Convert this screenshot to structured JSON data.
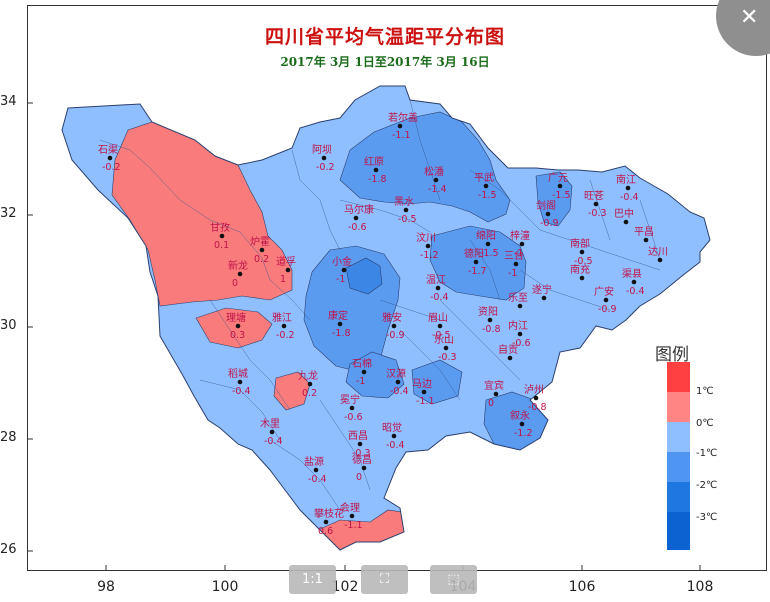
{
  "map": {
    "title": "四川省平均气温距平分布图",
    "subtitle": "2017年 3月 1日至2017年 3月 16日",
    "y_ticks": [
      "34",
      "32",
      "30",
      "28",
      "26"
    ],
    "x_ticks": [
      "98",
      "100",
      "102",
      "104",
      "106",
      "108"
    ],
    "legend": {
      "title": "图例",
      "items": [
        {
          "label": "1℃",
          "color": "#ff4040"
        },
        {
          "label": "0℃",
          "color": "#ff8585"
        },
        {
          "label": "-1℃",
          "color": "#8fbfff"
        },
        {
          "label": "-2℃",
          "color": "#4f96f2"
        },
        {
          "label": "-3℃",
          "color": "#1f78e0"
        },
        {
          "label": "",
          "color": "#0b62d0"
        }
      ]
    },
    "colors": {
      "warm": "#f97b7b",
      "cool_light": "#8fbfff",
      "cool_mid": "#5a9bf0",
      "cool_dark": "#3c86e6",
      "border": "#2b3f6e",
      "title": "#cc1111",
      "subtitle": "#1b6b1b"
    },
    "stations": [
      {
        "name": "石渠",
        "value": "-0.2"
      },
      {
        "name": "若尔盖",
        "value": "-1.1"
      },
      {
        "name": "阿坝",
        "value": "-0.2"
      },
      {
        "name": "红原",
        "value": "-1.8"
      },
      {
        "name": "松潘",
        "value": "-1.4"
      },
      {
        "name": "平武",
        "value": "-1.5"
      },
      {
        "name": "广元",
        "value": "-1.5"
      },
      {
        "name": "旺苍",
        "value": "-0.3"
      },
      {
        "name": "南江",
        "value": "-0.4"
      },
      {
        "name": "剑阁",
        "value": "-0.9"
      },
      {
        "name": "巴中",
        "value": ""
      },
      {
        "name": "平昌",
        "value": ""
      },
      {
        "name": "马尔康",
        "value": "-0.6"
      },
      {
        "name": "黑水",
        "value": "-0.5"
      },
      {
        "name": "甘孜",
        "value": "0.1"
      },
      {
        "name": "炉霍",
        "value": "0.2"
      },
      {
        "name": "道孚",
        "value": "1"
      },
      {
        "name": "新龙",
        "value": "0"
      },
      {
        "name": "汶川",
        "value": "-1.2"
      },
      {
        "name": "绵阳",
        "value": "-1.5"
      },
      {
        "name": "梓潼",
        "value": "-1"
      },
      {
        "name": "南部",
        "value": "-0.5"
      },
      {
        "name": "达川",
        "value": ""
      },
      {
        "name": "德阳",
        "value": "-1.7"
      },
      {
        "name": "三台",
        "value": "-1"
      },
      {
        "name": "南充",
        "value": ""
      },
      {
        "name": "渠县",
        "value": "-0.4"
      },
      {
        "name": "小金",
        "value": "-1"
      },
      {
        "name": "温江",
        "value": "-0.4"
      },
      {
        "name": "遂宁",
        "value": ""
      },
      {
        "name": "广安",
        "value": "-0.9"
      },
      {
        "name": "理塘",
        "value": "0.3"
      },
      {
        "name": "雅江",
        "value": "-0.2"
      },
      {
        "name": "康定",
        "value": "-1.8"
      },
      {
        "name": "雅安",
        "value": "-0.9"
      },
      {
        "name": "眉山",
        "value": "-0.5"
      },
      {
        "name": "资阳",
        "value": "-0.8"
      },
      {
        "name": "乐至",
        "value": ""
      },
      {
        "name": "内江",
        "value": "-0.6"
      },
      {
        "name": "乐山",
        "value": "-0.3"
      },
      {
        "name": "自贡",
        "value": ""
      },
      {
        "name": "稻城",
        "value": "-0.4"
      },
      {
        "name": "九龙",
        "value": "0.2"
      },
      {
        "name": "石棉",
        "value": "-1"
      },
      {
        "name": "汉源",
        "value": "-0.4"
      },
      {
        "name": "马边",
        "value": "-1.1"
      },
      {
        "name": "宜宾",
        "value": "0"
      },
      {
        "name": "泸州",
        "value": "-0.8"
      },
      {
        "name": "冕宁",
        "value": "-0.6"
      },
      {
        "name": "昭觉",
        "value": "-0.4"
      },
      {
        "name": "叙永",
        "value": "-1.2"
      },
      {
        "name": "木里",
        "value": "-0.4"
      },
      {
        "name": "西昌",
        "value": "-0.3"
      },
      {
        "name": "盐源",
        "value": "-0.4"
      },
      {
        "name": "德昌",
        "value": "0"
      },
      {
        "name": "会理",
        "value": "-1.1"
      },
      {
        "name": "攀枝花",
        "value": "0.6"
      }
    ]
  },
  "controls": {
    "close_icon": "close-icon",
    "zoom_actual_icon": "one-to-one-icon",
    "fit_icon": "fit-screen-icon",
    "select_icon": "select-area-icon",
    "zoom_actual_label": "1:1"
  }
}
